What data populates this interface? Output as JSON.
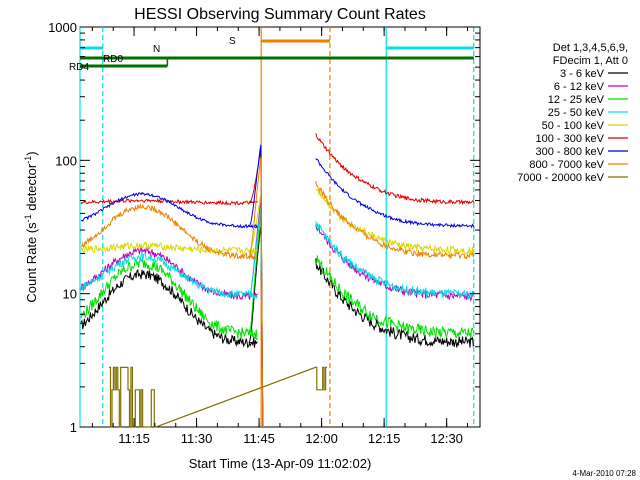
{
  "chart_data": {
    "type": "line",
    "title": "HESSI Observing Summary Count Rates",
    "xlabel": "Start Time (13-Apr-09 11:02:02)",
    "ylabel": "Count Rate (s",
    "ylabel_sup1": "-1",
    "ylabel_mid": " detector",
    "ylabel_sup2": "-1",
    "ylabel_end": ")",
    "yscale": "log",
    "ylim": [
      1,
      1000
    ],
    "xlim": [
      "11:02:02",
      "12:38:00"
    ],
    "x_ticks": [
      "11:15",
      "11:30",
      "11:45",
      "12:00",
      "12:15",
      "12:30"
    ],
    "y_ticks": [
      "1",
      "10",
      "100",
      "1000"
    ],
    "legend_position": "right",
    "legend_header": [
      "Det 1,3,4,5,6,9,",
      "FDecim 1, Att 0"
    ],
    "series": [
      {
        "name": "3 - 6 keV",
        "color": "#000000"
      },
      {
        "name": "6 - 12 keV",
        "color": "#c000c0"
      },
      {
        "name": "12 - 25 keV",
        "color": "#00e000"
      },
      {
        "name": "25 - 50 keV",
        "color": "#00e0e0"
      },
      {
        "name": "50 - 100 keV",
        "color": "#d8d800"
      },
      {
        "name": "100 - 300 keV",
        "color": "#e00000"
      },
      {
        "name": "300 - 800 keV",
        "color": "#0000e0"
      },
      {
        "name": "800 - 7000 keV",
        "color": "#f08000"
      },
      {
        "name": "7000 - 20000 keV",
        "color": "#807000"
      }
    ],
    "flags": [
      {
        "label": "N",
        "color": "#00e0e0"
      },
      {
        "label": "S",
        "color": "#f08000"
      },
      {
        "label": "RD0",
        "color": "#007000"
      },
      {
        "label": "RD4",
        "color": "#007000"
      }
    ],
    "footer": "4-Mar-2010 07:28"
  }
}
